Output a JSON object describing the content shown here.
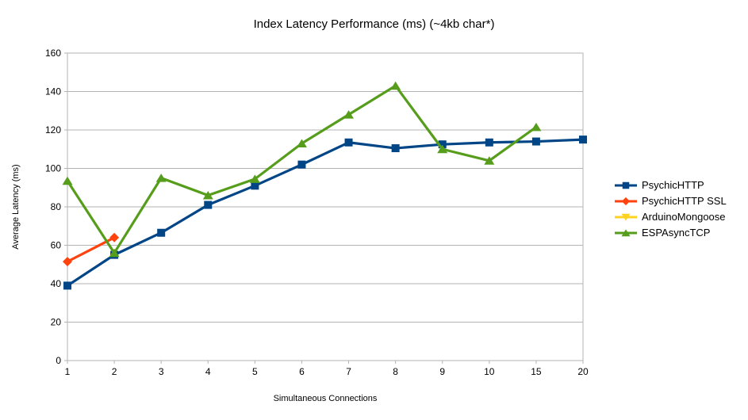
{
  "chart_data": {
    "type": "line",
    "title": "Index Latency Performance (ms) (~4kb char*)",
    "xlabel": "Simultaneous Connections",
    "ylabel": "Average Latency (ms)",
    "categories": [
      "1",
      "2",
      "3",
      "4",
      "5",
      "6",
      "7",
      "8",
      "9",
      "10",
      "15",
      "20"
    ],
    "ylim": [
      0,
      160
    ],
    "ytick_step": 20,
    "grid": "horizontal",
    "legend_position": "right",
    "series": [
      {
        "name": "PsychicHTTP",
        "color": "#004586",
        "marker": "square",
        "values": [
          39,
          55,
          66.5,
          81,
          91,
          102,
          113.5,
          110.5,
          112.5,
          113.5,
          114,
          115
        ]
      },
      {
        "name": "PsychicHTTP SSL",
        "color": "#ff420e",
        "marker": "diamond",
        "values": [
          51.5,
          64,
          null,
          null,
          null,
          null,
          null,
          null,
          null,
          null,
          null,
          null
        ]
      },
      {
        "name": "ArduinoMongoose",
        "color": "#ffd320",
        "marker": "triangle-down",
        "values": [
          null,
          null,
          null,
          null,
          null,
          null,
          null,
          null,
          null,
          null,
          null,
          null
        ]
      },
      {
        "name": "ESPAsyncTCP",
        "color": "#579d1c",
        "marker": "triangle-up",
        "values": [
          93.5,
          56,
          95,
          86,
          94.5,
          113,
          128,
          143,
          110,
          104,
          121.5,
          null
        ]
      }
    ]
  },
  "colors": {
    "grid": "#b3b3b3",
    "axis_text": "#000000",
    "background": "#ffffff"
  }
}
